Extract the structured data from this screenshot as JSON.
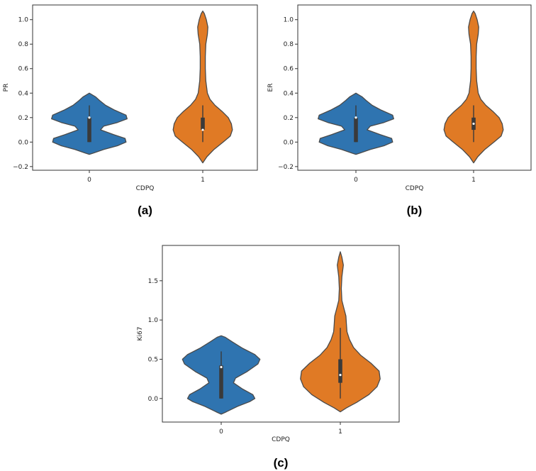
{
  "colors": {
    "group0": "#2f74b0",
    "group1": "#e07a25",
    "box": "#3a3a3a",
    "median": "#ffffff"
  },
  "chart_data": [
    {
      "type": "violin",
      "panel_label": "(a)",
      "xlabel": "CDPQ",
      "ylabel": "PR",
      "categories": [
        "0",
        "1"
      ],
      "ylim": [
        -0.23,
        1.12
      ],
      "yticks": [
        -0.2,
        0.0,
        0.2,
        0.4,
        0.6,
        0.8,
        1.0
      ],
      "ytick_labels": [
        "−0.2",
        "0.0",
        "0.2",
        "0.4",
        "0.6",
        "0.8",
        "1.0"
      ],
      "grid": false,
      "violins": [
        {
          "category": "0",
          "color_key": "group0",
          "profile": [
            [
              -0.1,
              0.0
            ],
            [
              -0.09,
              0.08
            ],
            [
              -0.06,
              0.28
            ],
            [
              -0.03,
              0.55
            ],
            [
              0.0,
              0.72
            ],
            [
              0.03,
              0.7
            ],
            [
              0.06,
              0.48
            ],
            [
              0.1,
              0.22
            ],
            [
              0.13,
              0.28
            ],
            [
              0.16,
              0.55
            ],
            [
              0.19,
              0.74
            ],
            [
              0.22,
              0.72
            ],
            [
              0.26,
              0.5
            ],
            [
              0.3,
              0.32
            ],
            [
              0.34,
              0.2
            ],
            [
              0.37,
              0.12
            ],
            [
              0.4,
              0.0
            ]
          ],
          "box": {
            "q1": 0.0,
            "median": 0.2,
            "q3": 0.2,
            "whisker_low": 0.0,
            "whisker_high": 0.3
          }
        },
        {
          "category": "1",
          "color_key": "group1",
          "profile": [
            [
              -0.17,
              0.0
            ],
            [
              -0.12,
              0.08
            ],
            [
              -0.06,
              0.22
            ],
            [
              0.0,
              0.4
            ],
            [
              0.05,
              0.54
            ],
            [
              0.1,
              0.58
            ],
            [
              0.15,
              0.56
            ],
            [
              0.2,
              0.5
            ],
            [
              0.25,
              0.38
            ],
            [
              0.3,
              0.24
            ],
            [
              0.35,
              0.14
            ],
            [
              0.4,
              0.09
            ],
            [
              0.5,
              0.06
            ],
            [
              0.6,
              0.05
            ],
            [
              0.7,
              0.05
            ],
            [
              0.8,
              0.06
            ],
            [
              0.88,
              0.09
            ],
            [
              0.94,
              0.1
            ],
            [
              1.0,
              0.07
            ],
            [
              1.05,
              0.03
            ],
            [
              1.07,
              0.0
            ]
          ],
          "box": {
            "q1": 0.1,
            "median": 0.1,
            "q3": 0.2,
            "whisker_low": 0.0,
            "whisker_high": 0.3
          }
        }
      ]
    },
    {
      "type": "violin",
      "panel_label": "(b)",
      "xlabel": "CDPQ",
      "ylabel": "ER",
      "categories": [
        "0",
        "1"
      ],
      "ylim": [
        -0.23,
        1.12
      ],
      "yticks": [
        -0.2,
        0.0,
        0.2,
        0.4,
        0.6,
        0.8,
        1.0
      ],
      "ytick_labels": [
        "−0.2",
        "0.0",
        "0.2",
        "0.4",
        "0.6",
        "0.8",
        "1.0"
      ],
      "grid": false,
      "violins": [
        {
          "category": "0",
          "color_key": "group0",
          "profile": [
            [
              -0.1,
              0.0
            ],
            [
              -0.09,
              0.08
            ],
            [
              -0.06,
              0.28
            ],
            [
              -0.03,
              0.55
            ],
            [
              0.0,
              0.72
            ],
            [
              0.03,
              0.7
            ],
            [
              0.06,
              0.48
            ],
            [
              0.1,
              0.22
            ],
            [
              0.13,
              0.28
            ],
            [
              0.16,
              0.55
            ],
            [
              0.19,
              0.74
            ],
            [
              0.22,
              0.72
            ],
            [
              0.26,
              0.5
            ],
            [
              0.3,
              0.32
            ],
            [
              0.34,
              0.2
            ],
            [
              0.37,
              0.12
            ],
            [
              0.4,
              0.0
            ]
          ],
          "box": {
            "q1": 0.0,
            "median": 0.2,
            "q3": 0.2,
            "whisker_low": 0.0,
            "whisker_high": 0.3
          }
        },
        {
          "category": "1",
          "color_key": "group1",
          "profile": [
            [
              -0.17,
              0.0
            ],
            [
              -0.12,
              0.08
            ],
            [
              -0.06,
              0.22
            ],
            [
              0.0,
              0.4
            ],
            [
              0.05,
              0.54
            ],
            [
              0.1,
              0.58
            ],
            [
              0.15,
              0.56
            ],
            [
              0.2,
              0.5
            ],
            [
              0.25,
              0.38
            ],
            [
              0.3,
              0.24
            ],
            [
              0.35,
              0.14
            ],
            [
              0.4,
              0.09
            ],
            [
              0.5,
              0.06
            ],
            [
              0.6,
              0.05
            ],
            [
              0.7,
              0.05
            ],
            [
              0.8,
              0.06
            ],
            [
              0.88,
              0.09
            ],
            [
              0.94,
              0.1
            ],
            [
              1.0,
              0.07
            ],
            [
              1.05,
              0.03
            ],
            [
              1.07,
              0.0
            ]
          ],
          "box": {
            "q1": 0.1,
            "median": 0.15,
            "q3": 0.2,
            "whisker_low": 0.0,
            "whisker_high": 0.3
          }
        }
      ]
    },
    {
      "type": "violin",
      "panel_label": "(c)",
      "xlabel": "CDPQ",
      "ylabel": "Ki67",
      "categories": [
        "0",
        "1"
      ],
      "ylim": [
        -0.3,
        1.95
      ],
      "yticks": [
        0.0,
        0.5,
        1.0,
        1.5
      ],
      "ytick_labels": [
        "0.0",
        "0.5",
        "1.0",
        "1.5"
      ],
      "grid": false,
      "violins": [
        {
          "category": "0",
          "color_key": "group0",
          "profile": [
            [
              -0.2,
              0.0
            ],
            [
              -0.17,
              0.1
            ],
            [
              -0.1,
              0.32
            ],
            [
              -0.04,
              0.56
            ],
            [
              0.0,
              0.66
            ],
            [
              0.05,
              0.62
            ],
            [
              0.12,
              0.42
            ],
            [
              0.2,
              0.24
            ],
            [
              0.26,
              0.28
            ],
            [
              0.34,
              0.5
            ],
            [
              0.44,
              0.72
            ],
            [
              0.5,
              0.76
            ],
            [
              0.56,
              0.66
            ],
            [
              0.64,
              0.42
            ],
            [
              0.72,
              0.22
            ],
            [
              0.78,
              0.08
            ],
            [
              0.8,
              0.0
            ]
          ],
          "box": {
            "q1": 0.0,
            "median": 0.4,
            "q3": 0.42,
            "whisker_low": 0.0,
            "whisker_high": 0.6
          }
        },
        {
          "category": "1",
          "color_key": "group1",
          "profile": [
            [
              -0.17,
              0.0
            ],
            [
              -0.12,
              0.12
            ],
            [
              -0.05,
              0.32
            ],
            [
              0.05,
              0.56
            ],
            [
              0.15,
              0.72
            ],
            [
              0.25,
              0.78
            ],
            [
              0.35,
              0.76
            ],
            [
              0.45,
              0.6
            ],
            [
              0.55,
              0.4
            ],
            [
              0.65,
              0.26
            ],
            [
              0.75,
              0.18
            ],
            [
              0.85,
              0.13
            ],
            [
              0.95,
              0.12
            ],
            [
              1.05,
              0.11
            ],
            [
              1.15,
              0.07
            ],
            [
              1.25,
              0.03
            ],
            [
              1.4,
              0.02
            ],
            [
              1.55,
              0.03
            ],
            [
              1.7,
              0.06
            ],
            [
              1.8,
              0.03
            ],
            [
              1.87,
              0.0
            ]
          ],
          "box": {
            "q1": 0.2,
            "median": 0.3,
            "q3": 0.5,
            "whisker_low": 0.0,
            "whisker_high": 0.9
          }
        }
      ]
    }
  ]
}
